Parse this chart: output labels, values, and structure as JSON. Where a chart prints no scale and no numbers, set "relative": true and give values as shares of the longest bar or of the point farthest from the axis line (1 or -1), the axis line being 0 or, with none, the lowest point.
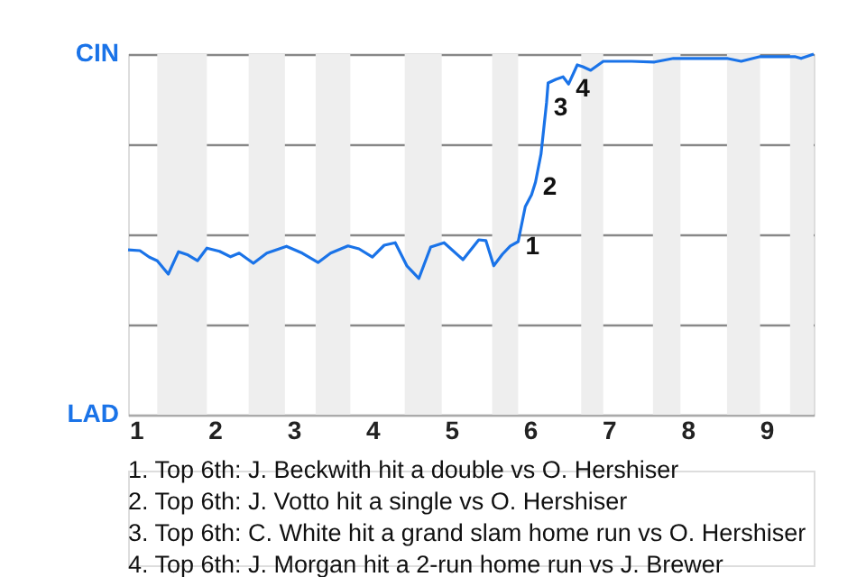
{
  "chart_data": {
    "type": "line",
    "x": [
      0.9,
      1.05,
      1.17,
      1.27,
      1.41,
      1.54,
      1.66,
      1.78,
      1.9,
      2.06,
      2.2,
      2.31,
      2.49,
      2.66,
      2.91,
      3.11,
      3.31,
      3.47,
      3.69,
      3.83,
      4.0,
      4.15,
      4.29,
      4.44,
      4.59,
      4.74,
      4.91,
      5.15,
      5.35,
      5.44,
      5.54,
      5.65,
      5.75,
      5.85,
      5.94,
      6.02,
      6.07,
      6.14,
      6.21,
      6.23,
      6.33,
      6.42,
      6.49,
      6.6,
      6.67,
      6.77,
      6.93,
      7.29,
      7.58,
      7.82,
      8.5,
      8.68,
      8.92,
      9.36,
      9.44,
      9.6
    ],
    "series": [
      {
        "color": "#1a73e8",
        "values": [
          0.457,
          0.455,
          0.437,
          0.427,
          0.39,
          0.452,
          0.443,
          0.427,
          0.462,
          0.453,
          0.438,
          0.448,
          0.42,
          0.448,
          0.467,
          0.448,
          0.422,
          0.448,
          0.468,
          0.46,
          0.437,
          0.47,
          0.477,
          0.412,
          0.378,
          0.465,
          0.477,
          0.43,
          0.485,
          0.483,
          0.413,
          0.445,
          0.468,
          0.48,
          0.577,
          0.61,
          0.645,
          0.723,
          0.865,
          0.92,
          0.93,
          0.937,
          0.917,
          0.97,
          0.965,
          0.955,
          0.98,
          0.98,
          0.978,
          0.988,
          0.988,
          0.98,
          0.993,
          0.993,
          0.988,
          1.0
        ]
      }
    ],
    "relative": true,
    "xlim": [
      0.9,
      9.6
    ],
    "xticks": [
      1,
      2,
      3,
      4,
      5,
      6,
      7,
      8,
      9
    ],
    "grid": "y",
    "bands": [
      {
        "axis": "x",
        "from": 1.27,
        "to": 1.9,
        "color": "#eeeeee"
      },
      {
        "axis": "x",
        "from": 2.43,
        "to": 2.89,
        "color": "#eeeeee"
      },
      {
        "axis": "x",
        "from": 3.28,
        "to": 3.72,
        "color": "#eeeeee"
      },
      {
        "axis": "x",
        "from": 4.41,
        "to": 4.88,
        "color": "#eeeeee"
      },
      {
        "axis": "x",
        "from": 5.52,
        "to": 5.85,
        "color": "#eeeeee"
      },
      {
        "axis": "x",
        "from": 6.65,
        "to": 6.93,
        "color": "#eeeeee"
      },
      {
        "axis": "x",
        "from": 7.56,
        "to": 7.91,
        "color": "#eeeeee"
      },
      {
        "axis": "x",
        "from": 8.5,
        "to": 8.92,
        "color": "#eeeeee"
      },
      {
        "axis": "x",
        "from": 9.3,
        "to": 9.6,
        "color": "#eeeeee"
      }
    ],
    "annotations": [
      {
        "text": "1",
        "x": 5.85,
        "y": 0.48
      },
      {
        "text": "2",
        "x": 6.07,
        "y": 0.645
      },
      {
        "text": "3",
        "x": 6.21,
        "y": 0.865
      },
      {
        "text": "4",
        "x": 6.49,
        "y": 0.917
      },
      "CIN",
      "LAD",
      "1. Top 6th: J. Beckwith hit a double vs O. Hershiser",
      "2. Top 6th: J. Votto hit a single vs O. Hershiser",
      "3. Top 6th: C. White hit a grand slam home run vs O. Hershiser",
      "4. Top 6th: J. Morgan hit a 2-run home run vs J. Brewer"
    ]
  }
}
